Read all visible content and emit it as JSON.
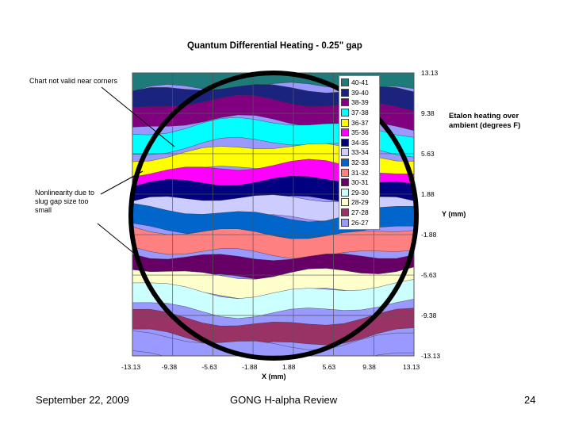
{
  "slide": {
    "footer_date": "September 22, 2009",
    "footer_title": "GONG H-alpha Review",
    "page_number": "24"
  },
  "annotations": {
    "corners_note": "Chart not valid near corners",
    "nonlinearity_note": "Nonlinearity due to slug gap size too small",
    "caption": "Etalon heating over ambient (degrees F)"
  },
  "chart_data": {
    "type": "filled-contour",
    "title": "Quantum Differential Heating - 0.25\" gap",
    "xlabel": "X (mm)",
    "ylabel": "Y (mm)",
    "x_ticks": [
      "-13.13",
      "-9.38",
      "-5.63",
      "-1.88",
      "1.88",
      "5.63",
      "9.38",
      "13.13"
    ],
    "y_ticks": [
      "13.13",
      "9.38",
      "5.63",
      "1.88",
      "-1.88",
      "-5.63",
      "-9.38",
      "-13.13"
    ],
    "xlim": [
      -13.13,
      13.13
    ],
    "ylim": [
      -13.13,
      13.13
    ],
    "grid": true,
    "legend_position": "top-right inside plot",
    "levels": [
      {
        "label": "40-41",
        "color": "#1f7a7a"
      },
      {
        "label": "39-40",
        "color": "#1a237e"
      },
      {
        "label": "38-39",
        "color": "#800080"
      },
      {
        "label": "37-38",
        "color": "#00ffff"
      },
      {
        "label": "36-37",
        "color": "#ffff00"
      },
      {
        "label": "35-36",
        "color": "#ff00ff"
      },
      {
        "label": "34-35",
        "color": "#000080"
      },
      {
        "label": "33-34",
        "color": "#ccccff"
      },
      {
        "label": "32-33",
        "color": "#0066cc"
      },
      {
        "label": "31-32",
        "color": "#ff8080"
      },
      {
        "label": "30-31",
        "color": "#660066"
      },
      {
        "label": "29-30",
        "color": "#ccffff"
      },
      {
        "label": "28-29",
        "color": "#ffffcc"
      },
      {
        "label": "27-28",
        "color": "#993366"
      },
      {
        "label": "26-27",
        "color": "#9999ff"
      }
    ],
    "bands_top_to_bottom": [
      {
        "label": "40-41",
        "y_center": 13.0
      },
      {
        "label": "39-40",
        "y_center": 11.0
      },
      {
        "label": "38-39",
        "y_center": 9.7
      },
      {
        "label": "37-38",
        "y_center": 7.6
      },
      {
        "label": "36-37",
        "y_center": 5.3
      },
      {
        "label": "35-36",
        "y_center": 3.7
      },
      {
        "label": "34-35",
        "y_center": 2.4
      },
      {
        "label": "33-34",
        "y_center": 0.8
      },
      {
        "label": "32-33",
        "y_center": -1.1
      },
      {
        "label": "31-32",
        "y_center": -2.9
      },
      {
        "label": "30-31",
        "y_center": -5.1
      },
      {
        "label": "29-30",
        "y_center": -8.2
      },
      {
        "label": "28-29",
        "y_center": -6.6
      },
      {
        "label": "27-28",
        "y_center": -11.0
      },
      {
        "label": "26-27",
        "y_center": -13.0
      }
    ],
    "overlay": "circle marking etalon aperture"
  }
}
